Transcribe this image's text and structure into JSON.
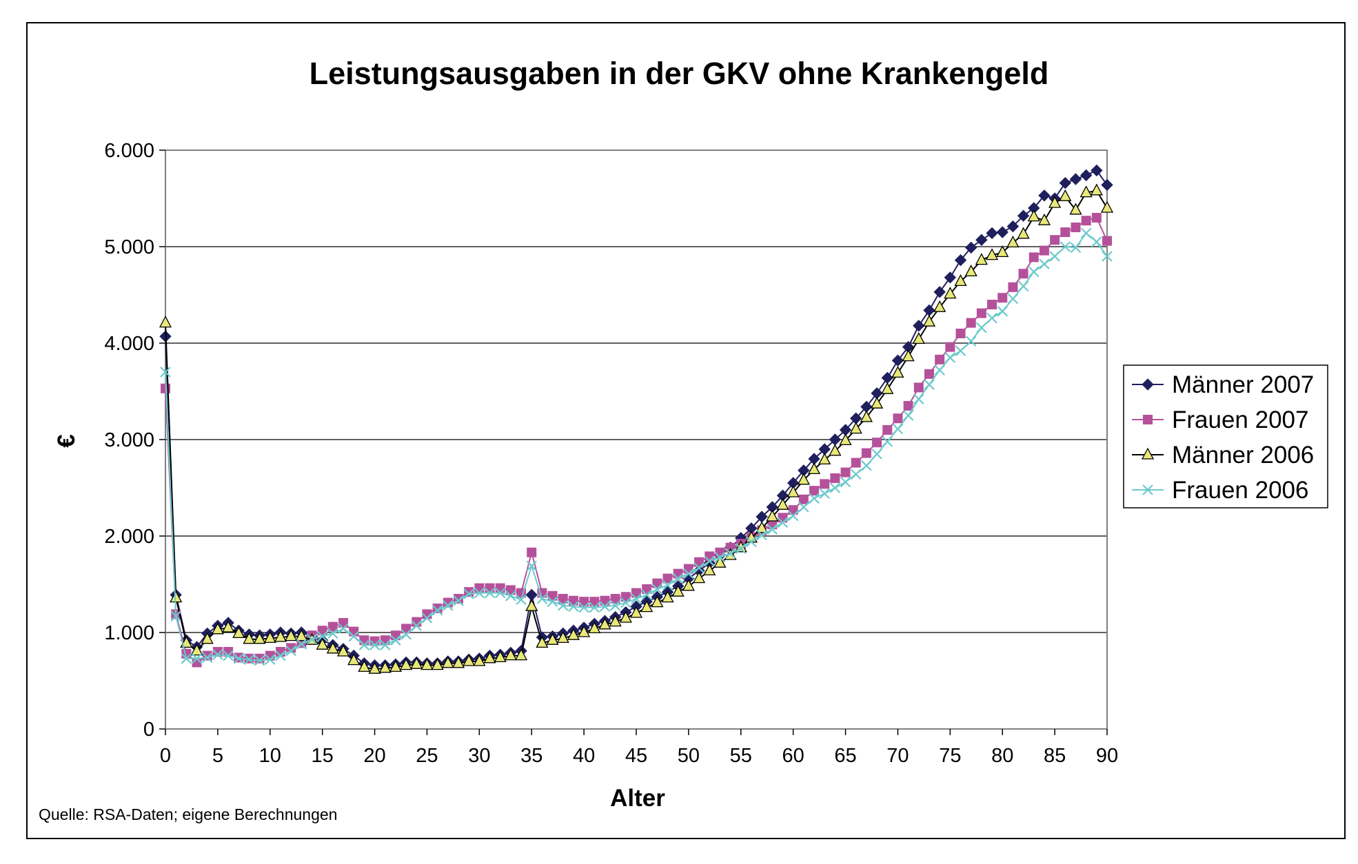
{
  "chart_data": {
    "type": "line",
    "title": "Leistungsausgaben in der GKV ohne Krankengeld",
    "xlabel": "Alter",
    "ylabel": "€",
    "source": "Quelle: RSA-Daten; eigene Berechnungen",
    "xlim": [
      0,
      90
    ],
    "ylim": [
      0,
      6000
    ],
    "grid": true,
    "legend": "right",
    "x_ticks": [
      "0",
      "5",
      "10",
      "15",
      "20",
      "25",
      "30",
      "35",
      "40",
      "45",
      "50",
      "55",
      "60",
      "65",
      "70",
      "75",
      "80",
      "85",
      "90"
    ],
    "y_ticks": [
      "0",
      "1.000",
      "2.000",
      "3.000",
      "4.000",
      "5.000",
      "6.000"
    ],
    "x": [
      0,
      1,
      2,
      3,
      4,
      5,
      6,
      7,
      8,
      9,
      10,
      11,
      12,
      13,
      14,
      15,
      16,
      17,
      18,
      19,
      20,
      21,
      22,
      23,
      24,
      25,
      26,
      27,
      28,
      29,
      30,
      31,
      32,
      33,
      34,
      35,
      36,
      37,
      38,
      39,
      40,
      41,
      42,
      43,
      44,
      45,
      46,
      47,
      48,
      49,
      50,
      51,
      52,
      53,
      54,
      55,
      56,
      57,
      58,
      59,
      60,
      61,
      62,
      63,
      64,
      65,
      66,
      67,
      68,
      69,
      70,
      71,
      72,
      73,
      74,
      75,
      76,
      77,
      78,
      79,
      80,
      81,
      82,
      83,
      84,
      85,
      86,
      87,
      88,
      89,
      90
    ],
    "series": [
      {
        "name": "Männer 2007",
        "color": "#1f1f5e",
        "marker": "diamond",
        "values": [
          4070,
          1390,
          920,
          850,
          990,
          1070,
          1100,
          1020,
          980,
          970,
          980,
          1000,
          990,
          1000,
          960,
          920,
          870,
          830,
          760,
          680,
          660,
          660,
          670,
          690,
          690,
          680,
          680,
          700,
          700,
          720,
          730,
          760,
          770,
          790,
          810,
          1390,
          950,
          960,
          990,
          1020,
          1050,
          1090,
          1120,
          1160,
          1210,
          1270,
          1320,
          1370,
          1420,
          1480,
          1560,
          1640,
          1720,
          1800,
          1880,
          1980,
          2080,
          2200,
          2300,
          2420,
          2550,
          2680,
          2800,
          2900,
          3000,
          3100,
          3220,
          3340,
          3480,
          3640,
          3820,
          3960,
          4180,
          4340,
          4530,
          4680,
          4860,
          4990,
          5070,
          5140,
          5150,
          5210,
          5320,
          5400,
          5530,
          5500,
          5660,
          5700,
          5740,
          5790,
          5640
        ]
      },
      {
        "name": "Frauen 2007",
        "color": "#b5519b",
        "marker": "square",
        "values": [
          3530,
          1190,
          780,
          690,
          760,
          800,
          800,
          740,
          730,
          730,
          760,
          800,
          840,
          890,
          970,
          1020,
          1060,
          1100,
          1010,
          920,
          910,
          920,
          970,
          1040,
          1110,
          1190,
          1250,
          1310,
          1350,
          1420,
          1460,
          1460,
          1460,
          1440,
          1410,
          1830,
          1410,
          1380,
          1350,
          1330,
          1320,
          1320,
          1330,
          1350,
          1370,
          1410,
          1450,
          1510,
          1560,
          1610,
          1660,
          1730,
          1790,
          1830,
          1880,
          1920,
          1990,
          2060,
          2120,
          2190,
          2270,
          2380,
          2470,
          2540,
          2600,
          2660,
          2760,
          2860,
          2970,
          3100,
          3220,
          3350,
          3540,
          3680,
          3830,
          3960,
          4100,
          4210,
          4310,
          4400,
          4470,
          4580,
          4720,
          4890,
          4960,
          5070,
          5150,
          5200,
          5270,
          5300,
          5060
        ]
      },
      {
        "name": "Männer 2006",
        "color": "#e8e87a",
        "marker": "triangle",
        "values": [
          4210,
          1360,
          890,
          810,
          930,
          1030,
          1050,
          990,
          930,
          930,
          940,
          950,
          960,
          960,
          920,
          870,
          830,
          800,
          710,
          640,
          620,
          630,
          640,
          660,
          670,
          660,
          660,
          680,
          680,
          700,
          700,
          730,
          740,
          760,
          760,
          1270,
          890,
          920,
          940,
          970,
          1000,
          1040,
          1080,
          1110,
          1150,
          1200,
          1260,
          1310,
          1360,
          1420,
          1480,
          1560,
          1640,
          1720,
          1800,
          1880,
          1980,
          2080,
          2200,
          2320,
          2450,
          2580,
          2690,
          2790,
          2880,
          2990,
          3110,
          3230,
          3370,
          3520,
          3690,
          3860,
          4040,
          4220,
          4370,
          4510,
          4640,
          4740,
          4860,
          4910,
          4940,
          5040,
          5130,
          5310,
          5270,
          5450,
          5520,
          5380,
          5560,
          5580,
          5400
        ]
      },
      {
        "name": "Frauen 2006",
        "color": "#6cc9cc",
        "marker": "x",
        "values": [
          3700,
          1170,
          730,
          730,
          740,
          770,
          760,
          730,
          720,
          710,
          720,
          760,
          810,
          880,
          930,
          960,
          990,
          1040,
          960,
          870,
          870,
          870,
          920,
          980,
          1070,
          1150,
          1230,
          1280,
          1330,
          1400,
          1410,
          1410,
          1410,
          1380,
          1340,
          1690,
          1350,
          1320,
          1280,
          1270,
          1260,
          1260,
          1270,
          1280,
          1310,
          1350,
          1390,
          1450,
          1490,
          1560,
          1610,
          1670,
          1740,
          1780,
          1820,
          1870,
          1940,
          2010,
          2070,
          2140,
          2210,
          2300,
          2390,
          2440,
          2500,
          2560,
          2640,
          2730,
          2850,
          2980,
          3110,
          3250,
          3420,
          3570,
          3720,
          3850,
          3920,
          4020,
          4160,
          4260,
          4330,
          4460,
          4590,
          4740,
          4820,
          4900,
          5000,
          4990,
          5140,
          5050,
          4900
        ]
      }
    ]
  }
}
